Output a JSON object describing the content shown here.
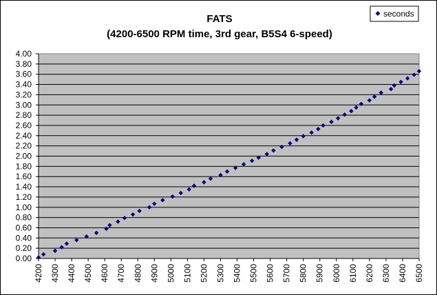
{
  "chart_data": {
    "type": "scatter",
    "title": "FATS",
    "subtitle": "(4200-6500 RPM time, 3rd gear, B5S4 6-speed)",
    "xlabel": "",
    "ylabel": "",
    "xlim": [
      4200,
      6500
    ],
    "ylim": [
      0,
      4.0
    ],
    "x_ticks": [
      "4200",
      "4300",
      "4400",
      "4500",
      "4600",
      "4700",
      "4800",
      "4900",
      "5000",
      "5100",
      "5200",
      "5300",
      "5400",
      "5500",
      "5600",
      "5700",
      "5800",
      "5900",
      "6000",
      "6100",
      "6200",
      "6300",
      "6400",
      "6500"
    ],
    "y_ticks": [
      "0.00",
      "0.20",
      "0.40",
      "0.60",
      "0.80",
      "1.00",
      "1.20",
      "1.40",
      "1.60",
      "1.80",
      "2.00",
      "2.20",
      "2.40",
      "2.60",
      "2.80",
      "3.00",
      "3.20",
      "3.40",
      "3.60",
      "3.80",
      "4.00"
    ],
    "grid": "horizontal",
    "plot_background": "#c0c0c0",
    "marker_color": "#000080",
    "legend_position": "top-right",
    "series": [
      {
        "name": "seconds",
        "color": "#000080",
        "marker": "diamond",
        "points": [
          [
            4200,
            0.02
          ],
          [
            4230,
            0.08
          ],
          [
            4300,
            0.15
          ],
          [
            4340,
            0.22
          ],
          [
            4370,
            0.29
          ],
          [
            4430,
            0.36
          ],
          [
            4490,
            0.43
          ],
          [
            4550,
            0.5
          ],
          [
            4610,
            0.58
          ],
          [
            4630,
            0.65
          ],
          [
            4680,
            0.72
          ],
          [
            4720,
            0.79
          ],
          [
            4770,
            0.86
          ],
          [
            4810,
            0.93
          ],
          [
            4870,
            1.0
          ],
          [
            4900,
            1.07
          ],
          [
            4950,
            1.14
          ],
          [
            5010,
            1.21
          ],
          [
            5060,
            1.28
          ],
          [
            5110,
            1.35
          ],
          [
            5140,
            1.42
          ],
          [
            5200,
            1.49
          ],
          [
            5240,
            1.56
          ],
          [
            5300,
            1.63
          ],
          [
            5340,
            1.7
          ],
          [
            5390,
            1.77
          ],
          [
            5440,
            1.84
          ],
          [
            5490,
            1.91
          ],
          [
            5530,
            1.97
          ],
          [
            5580,
            2.04
          ],
          [
            5620,
            2.11
          ],
          [
            5670,
            2.18
          ],
          [
            5720,
            2.25
          ],
          [
            5760,
            2.32
          ],
          [
            5800,
            2.39
          ],
          [
            5850,
            2.46
          ],
          [
            5890,
            2.53
          ],
          [
            5920,
            2.6
          ],
          [
            5970,
            2.67
          ],
          [
            6010,
            2.74
          ],
          [
            6050,
            2.81
          ],
          [
            6090,
            2.88
          ],
          [
            6120,
            2.95
          ],
          [
            6150,
            3.02
          ],
          [
            6200,
            3.09
          ],
          [
            6230,
            3.16
          ],
          [
            6270,
            3.24
          ],
          [
            6330,
            3.31
          ],
          [
            6350,
            3.38
          ],
          [
            6390,
            3.45
          ],
          [
            6430,
            3.52
          ],
          [
            6470,
            3.59
          ],
          [
            6500,
            3.66
          ]
        ]
      }
    ]
  }
}
